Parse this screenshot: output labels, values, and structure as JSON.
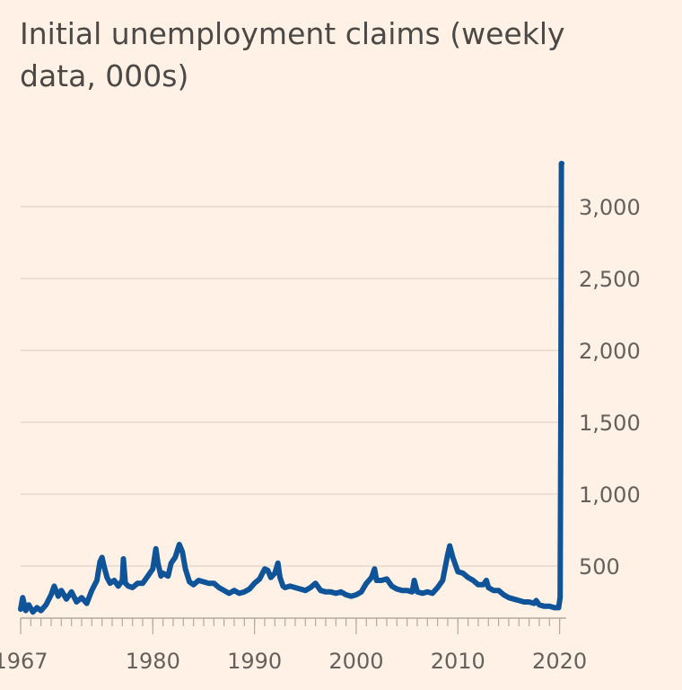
{
  "chart_data": {
    "type": "line",
    "title": "Initial unemployment claims (weekly data, 000s)",
    "xlabel": "",
    "ylabel": "",
    "xlim": [
      1967,
      2020.3
    ],
    "ylim": [
      0,
      3300
    ],
    "x_ticks": [
      1967,
      1980,
      1990,
      2000,
      2010,
      2020
    ],
    "y_ticks": [
      500,
      1000,
      1500,
      2000,
      2500,
      3000
    ],
    "y_tick_labels": [
      "500",
      "1,000",
      "1,500",
      "2,000",
      "2,500",
      "3,000"
    ],
    "grid": true,
    "y_axis_side": "right",
    "legend": "none",
    "color": "#0f5499",
    "series": [
      {
        "x": [
          1967.0,
          1967.2,
          1967.5,
          1967.8,
          1968.2,
          1968.6,
          1969.0,
          1969.5,
          1970.0,
          1970.3,
          1970.7,
          1971.0,
          1971.5,
          1972.0,
          1972.5,
          1973.0,
          1973.5,
          1974.0,
          1974.5,
          1974.8,
          1975.0,
          1975.2,
          1975.5,
          1975.8,
          1976.2,
          1976.6,
          1977.0,
          1977.1,
          1977.3,
          1977.6,
          1978.0,
          1978.5,
          1979.0,
          1979.5,
          1980.0,
          1980.3,
          1980.5,
          1980.8,
          1981.0,
          1981.5,
          1981.8,
          1982.2,
          1982.6,
          1982.9,
          1983.2,
          1983.6,
          1984.0,
          1984.5,
          1985.0,
          1985.5,
          1986.0,
          1986.5,
          1987.0,
          1987.5,
          1988.0,
          1988.5,
          1989.0,
          1989.5,
          1990.0,
          1990.5,
          1991.0,
          1991.3,
          1991.6,
          1992.0,
          1992.3,
          1992.5,
          1992.8,
          1993.0,
          1993.5,
          1994.0,
          1994.5,
          1995.0,
          1995.5,
          1996.0,
          1996.5,
          1997.0,
          1997.5,
          1998.0,
          1998.5,
          1999.0,
          1999.5,
          2000.0,
          2000.5,
          2001.0,
          2001.5,
          2001.8,
          2002.0,
          2002.5,
          2003.0,
          2003.5,
          2004.0,
          2004.5,
          2005.0,
          2005.5,
          2005.7,
          2006.0,
          2006.5,
          2007.0,
          2007.5,
          2008.0,
          2008.5,
          2009.0,
          2009.2,
          2009.5,
          2010.0,
          2010.5,
          2011.0,
          2011.5,
          2012.0,
          2012.5,
          2012.8,
          2013.0,
          2013.5,
          2014.0,
          2014.5,
          2015.0,
          2015.5,
          2016.0,
          2016.5,
          2017.0,
          2017.5,
          2017.7,
          2018.0,
          2018.5,
          2019.0,
          2019.5,
          2019.9,
          2020.05,
          2020.12,
          2020.18,
          2020.22
        ],
        "values": [
          200,
          280,
          190,
          230,
          180,
          210,
          190,
          230,
          300,
          360,
          290,
          330,
          270,
          320,
          250,
          280,
          240,
          330,
          400,
          530,
          560,
          500,
          420,
          380,
          400,
          360,
          400,
          550,
          380,
          360,
          350,
          380,
          380,
          430,
          480,
          620,
          520,
          430,
          450,
          430,
          520,
          560,
          650,
          600,
          480,
          390,
          370,
          400,
          390,
          380,
          380,
          350,
          330,
          310,
          330,
          310,
          320,
          340,
          380,
          410,
          480,
          470,
          420,
          450,
          520,
          420,
          360,
          350,
          360,
          350,
          340,
          330,
          350,
          380,
          330,
          320,
          320,
          310,
          320,
          300,
          290,
          300,
          320,
          380,
          420,
          480,
          400,
          400,
          410,
          360,
          340,
          330,
          330,
          320,
          400,
          320,
          310,
          320,
          310,
          350,
          400,
          580,
          640,
          560,
          460,
          450,
          420,
          400,
          370,
          370,
          400,
          350,
          330,
          330,
          300,
          280,
          270,
          260,
          250,
          250,
          240,
          260,
          230,
          220,
          220,
          210,
          210,
          282,
          1600,
          3300,
          3300
        ]
      }
    ]
  }
}
